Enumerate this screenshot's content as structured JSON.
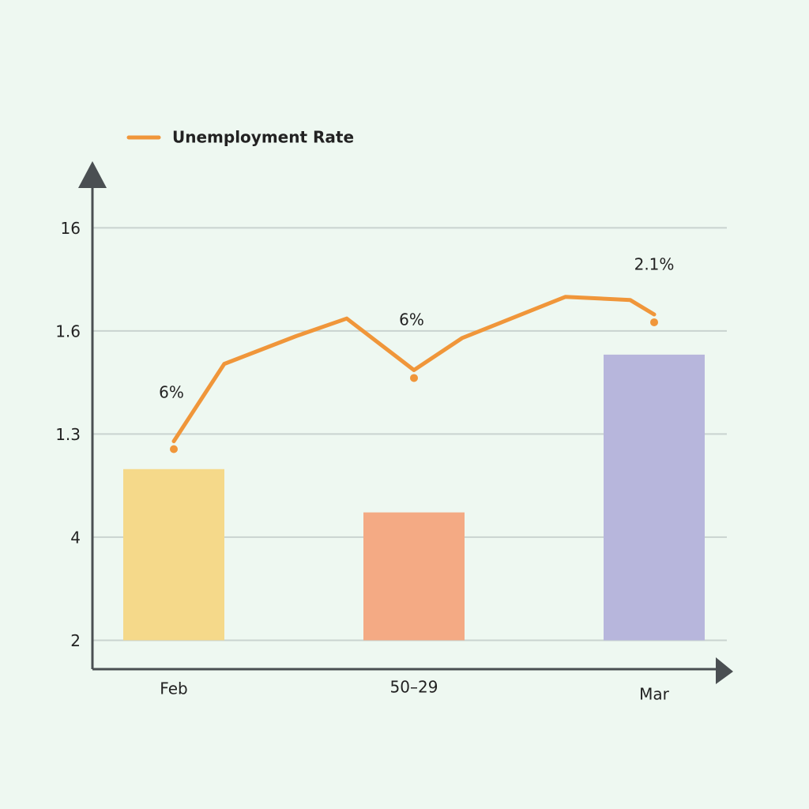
{
  "chart_data": {
    "type": "bar",
    "categories": [
      "Feb",
      "50–29",
      "Mar"
    ],
    "values": [
      1.66,
      1.24,
      2.77
    ],
    "colors": [
      "#f5d98a",
      "#f4aa84",
      "#b7b6dc"
    ],
    "ylim": [
      -0.28,
      4.6
    ],
    "yticks": [
      {
        "value": 0,
        "label": "2"
      },
      {
        "value": 1,
        "label": "4"
      },
      {
        "value": 2,
        "label": "1.3"
      },
      {
        "value": 3,
        "label": "1.6"
      },
      {
        "value": 4,
        "label": "16"
      }
    ],
    "grid": true,
    "line": {
      "name": "Unemployment Rate",
      "color": "#f0963a",
      "x": [
        0,
        0.21,
        0.51,
        0.72,
        1.0,
        1.2,
        1.63,
        1.9,
        2.0
      ],
      "values": [
        1.93,
        2.68,
        2.95,
        3.12,
        2.62,
        2.93,
        3.33,
        3.3,
        3.16
      ]
    },
    "annotations": [
      "6%",
      "6%",
      "2.1%"
    ],
    "legend": "top-left"
  }
}
